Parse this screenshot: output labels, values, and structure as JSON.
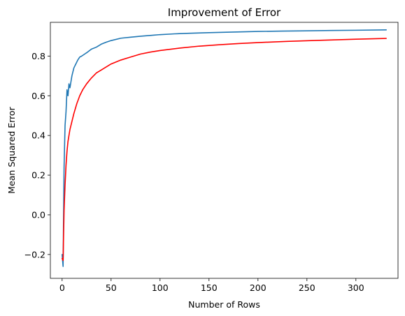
{
  "chart_data": {
    "type": "line",
    "title": "Improvement of Error",
    "xlabel": "Number of Rows",
    "ylabel": "Mean Squared Error",
    "xlim": [
      -12,
      343
    ],
    "ylim": [
      -0.32,
      0.97
    ],
    "x_ticks": [
      0,
      50,
      100,
      150,
      200,
      250,
      300
    ],
    "x_tick_labels": [
      "0",
      "50",
      "100",
      "150",
      "200",
      "250",
      "300"
    ],
    "y_ticks": [
      -0.2,
      0.0,
      0.2,
      0.4,
      0.6,
      0.8
    ],
    "y_tick_labels": [
      "−0.2",
      "0.0",
      "0.2",
      "0.4",
      "0.6",
      "0.8"
    ],
    "grid": false,
    "legend": "none",
    "series": [
      {
        "color": "#1f77b4",
        "x": [
          0,
          1,
          2,
          3,
          4,
          5,
          6,
          7,
          8,
          9,
          10,
          12,
          14,
          16,
          18,
          20,
          23,
          26,
          30,
          35,
          40,
          45,
          50,
          60,
          70,
          80,
          90,
          100,
          115,
          130,
          150,
          175,
          200,
          225,
          250,
          275,
          300,
          331
        ],
        "y": [
          -0.2,
          -0.26,
          0.24,
          0.45,
          0.52,
          0.63,
          0.6,
          0.66,
          0.64,
          0.67,
          0.7,
          0.74,
          0.76,
          0.78,
          0.795,
          0.8,
          0.81,
          0.82,
          0.835,
          0.845,
          0.86,
          0.87,
          0.878,
          0.89,
          0.895,
          0.9,
          0.904,
          0.908,
          0.912,
          0.915,
          0.918,
          0.921,
          0.924,
          0.926,
          0.927,
          0.929,
          0.93,
          0.932
        ]
      },
      {
        "color": "#ff0000",
        "x": [
          0,
          1,
          2,
          3,
          4,
          5,
          6,
          8,
          10,
          12,
          15,
          18,
          21,
          25,
          30,
          35,
          40,
          50,
          60,
          70,
          80,
          90,
          100,
          120,
          140,
          160,
          180,
          200,
          230,
          260,
          300,
          331
        ],
        "y": [
          -0.22,
          -0.23,
          0.02,
          0.15,
          0.25,
          0.32,
          0.37,
          0.43,
          0.47,
          0.51,
          0.56,
          0.6,
          0.63,
          0.66,
          0.69,
          0.715,
          0.73,
          0.76,
          0.78,
          0.795,
          0.81,
          0.82,
          0.828,
          0.84,
          0.85,
          0.857,
          0.863,
          0.868,
          0.874,
          0.879,
          0.885,
          0.889
        ]
      }
    ]
  }
}
